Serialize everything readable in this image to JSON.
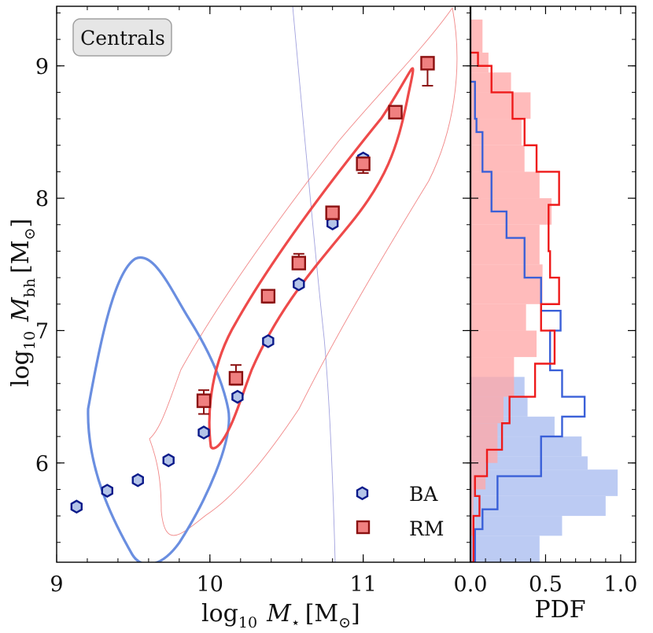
{
  "chart_data": [
    {
      "type": "scatter",
      "panel": "main",
      "badge": "Centrals",
      "xlabel": {
        "prefix": "log",
        "sub": "10",
        "var": "M",
        "var_sub": "⋆",
        "unit": "[M",
        "unit_sub": "⊙",
        "unit_end": "]"
      },
      "ylabel": {
        "prefix": "log",
        "sub": "10",
        "var": "M",
        "var_sub": "bh",
        "unit": "[M",
        "unit_sub": "⊙",
        "unit_end": "]"
      },
      "xlim": [
        9.0,
        11.7
      ],
      "ylim": [
        5.25,
        9.45
      ],
      "xticks": [
        9,
        10,
        11
      ],
      "xtick_labels": [
        "9",
        "10",
        "11"
      ],
      "yticks": [
        6,
        7,
        8,
        9
      ],
      "ytick_labels": [
        "6",
        "7",
        "8",
        "9"
      ],
      "legend_position": "bottom-right",
      "series": [
        {
          "name": "BA",
          "marker": "hexagon",
          "face_color": "#b4c4e8",
          "edge_color": "#0a1a8a",
          "x": [
            9.13,
            9.33,
            9.53,
            9.73,
            9.96,
            10.18,
            10.38,
            10.58,
            10.8,
            11.0
          ],
          "y": [
            5.67,
            5.79,
            5.87,
            6.02,
            6.23,
            6.5,
            6.92,
            7.35,
            7.81,
            8.3
          ]
        },
        {
          "name": "RM",
          "marker": "square",
          "face_color": "#f08080",
          "edge_color": "#8b1010",
          "x": [
            9.96,
            10.17,
            10.38,
            10.58,
            10.8,
            11.0,
            11.21,
            11.42
          ],
          "y": [
            6.47,
            6.64,
            7.26,
            7.51,
            7.89,
            8.26,
            8.65,
            9.02
          ],
          "err_low": [
            0.1,
            0.05,
            0.05,
            0.04,
            0.02,
            0.07,
            0.0,
            0.17
          ],
          "err_high": [
            0.08,
            0.1,
            0.02,
            0.07,
            0.0,
            0.03,
            0.0,
            0.04
          ]
        }
      ],
      "contours": [
        {
          "name": "BA-inner",
          "color": "#6a8ee0"
        },
        {
          "name": "RM-inner",
          "color": "#ee4a4a"
        },
        {
          "name": "BA-outer",
          "color": "#7a7ad0"
        },
        {
          "name": "RM-outer",
          "color": "#ee6a6a"
        }
      ]
    },
    {
      "type": "histogram",
      "panel": "side",
      "xlabel": "PDF",
      "xlim": [
        0.0,
        1.1
      ],
      "xticks": [
        0.0,
        0.5,
        1.0
      ],
      "xtick_labels": [
        "0.0",
        "0.5",
        "1.0"
      ],
      "series": [
        {
          "name": "BA filled",
          "style": "filled",
          "color": "#b8c8f2",
          "bins": [
            [
              5.25,
              5.45,
              0.46
            ],
            [
              5.45,
              5.6,
              0.61
            ],
            [
              5.6,
              5.75,
              0.9
            ],
            [
              5.75,
              5.95,
              0.98
            ],
            [
              5.95,
              6.05,
              0.78
            ],
            [
              6.05,
              6.2,
              0.74
            ],
            [
              6.2,
              6.35,
              0.56
            ],
            [
              6.35,
              6.5,
              0.38
            ],
            [
              6.5,
              6.65,
              0.36
            ]
          ]
        },
        {
          "name": "RM filled",
          "style": "filled",
          "color": "#ffa8a8",
          "bins": [
            [
              5.25,
              5.45,
              0.0
            ],
            [
              5.45,
              5.8,
              0.02
            ],
            [
              5.8,
              6.0,
              0.1
            ],
            [
              6.0,
              6.3,
              0.18
            ],
            [
              6.3,
              6.5,
              0.22
            ],
            [
              6.5,
              6.8,
              0.29
            ],
            [
              6.8,
              7.0,
              0.44
            ],
            [
              7.0,
              7.2,
              0.37
            ],
            [
              7.2,
              7.5,
              0.48
            ],
            [
              7.5,
              7.8,
              0.46
            ],
            [
              7.8,
              8.0,
              0.54
            ],
            [
              8.0,
              8.2,
              0.46
            ],
            [
              8.2,
              8.4,
              0.36
            ],
            [
              8.4,
              8.6,
              0.34
            ],
            [
              8.6,
              8.8,
              0.4
            ],
            [
              8.8,
              8.95,
              0.27
            ],
            [
              8.95,
              9.1,
              0.12
            ],
            [
              9.1,
              9.35,
              0.08
            ]
          ]
        },
        {
          "name": "BA step",
          "style": "step",
          "color": "#3a60d8",
          "bins": [
            [
              5.25,
              5.5,
              0.03
            ],
            [
              5.5,
              5.65,
              0.08
            ],
            [
              5.65,
              5.9,
              0.18
            ],
            [
              5.9,
              6.2,
              0.47
            ],
            [
              6.2,
              6.35,
              0.61
            ],
            [
              6.35,
              6.5,
              0.76
            ],
            [
              6.5,
              6.7,
              0.61
            ],
            [
              6.7,
              7.0,
              0.53
            ],
            [
              7.0,
              7.15,
              0.6
            ],
            [
              7.15,
              7.4,
              0.47
            ],
            [
              7.4,
              7.7,
              0.36
            ],
            [
              7.7,
              7.9,
              0.24
            ],
            [
              7.9,
              8.2,
              0.14
            ],
            [
              8.2,
              8.5,
              0.08
            ],
            [
              8.5,
              8.6,
              0.04
            ],
            [
              8.6,
              8.88,
              0.03
            ]
          ]
        },
        {
          "name": "RM step",
          "style": "step",
          "color": "#ee1a1a",
          "bins": [
            [
              5.25,
              5.6,
              0.02
            ],
            [
              5.6,
              5.75,
              0.06
            ],
            [
              5.75,
              5.9,
              0.03
            ],
            [
              5.9,
              6.1,
              0.11
            ],
            [
              6.1,
              6.3,
              0.21
            ],
            [
              6.3,
              6.5,
              0.26
            ],
            [
              6.5,
              6.75,
              0.43
            ],
            [
              6.75,
              7.0,
              0.56
            ],
            [
              7.0,
              7.2,
              0.47
            ],
            [
              7.2,
              7.4,
              0.59
            ],
            [
              7.4,
              7.6,
              0.53
            ],
            [
              7.6,
              7.95,
              0.52
            ],
            [
              7.95,
              8.2,
              0.59
            ],
            [
              8.2,
              8.4,
              0.44
            ],
            [
              8.4,
              8.6,
              0.36
            ],
            [
              8.6,
              8.8,
              0.28
            ],
            [
              8.8,
              9.0,
              0.14
            ],
            [
              9.0,
              9.1,
              0.05
            ]
          ]
        }
      ]
    }
  ]
}
